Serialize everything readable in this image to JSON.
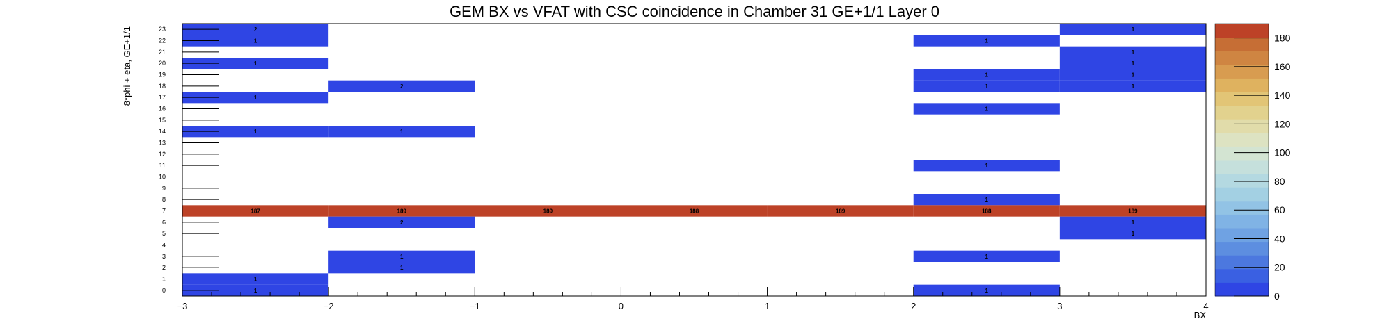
{
  "chart_data": {
    "type": "heatmap",
    "title": "GEM BX vs VFAT with CSC coincidence in Chamber 31 GE+1/1 Layer 0",
    "xlabel": "BX",
    "ylabel": "8*phi + eta, GE+1/1",
    "xlim": [
      -3,
      4
    ],
    "ylim": [
      -0.5,
      23.5
    ],
    "x_ticks": [
      "−3",
      "−2",
      "−1",
      "0",
      "1",
      "2",
      "3",
      "4"
    ],
    "y_ticks": [
      "0",
      "1",
      "2",
      "3",
      "4",
      "5",
      "6",
      "7",
      "8",
      "9",
      "10",
      "11",
      "12",
      "13",
      "14",
      "15",
      "16",
      "17",
      "18",
      "19",
      "20",
      "21",
      "22",
      "23"
    ],
    "x_bin_edges": [
      -3,
      -2,
      -1,
      0,
      1,
      2,
      3,
      4
    ],
    "zlim": [
      0,
      189
    ],
    "colorbar_ticks": [
      "0",
      "20",
      "40",
      "60",
      "80",
      "100",
      "120",
      "140",
      "160",
      "180"
    ],
    "cells": [
      {
        "bin": 0,
        "y": 23,
        "value": 2,
        "label": "2"
      },
      {
        "bin": 0,
        "y": 22,
        "value": 1,
        "label": "1"
      },
      {
        "bin": 0,
        "y": 20,
        "value": 1,
        "label": "1"
      },
      {
        "bin": 0,
        "y": 17,
        "value": 1,
        "label": "1"
      },
      {
        "bin": 0,
        "y": 14,
        "value": 1,
        "label": "1"
      },
      {
        "bin": 0,
        "y": 7,
        "value": 187,
        "label": "187"
      },
      {
        "bin": 0,
        "y": 1,
        "value": 1,
        "label": "1"
      },
      {
        "bin": 0,
        "y": 0,
        "value": 1,
        "label": "1"
      },
      {
        "bin": 1,
        "y": 18,
        "value": 2,
        "label": "2"
      },
      {
        "bin": 1,
        "y": 14,
        "value": 1,
        "label": "1"
      },
      {
        "bin": 1,
        "y": 7,
        "value": 189,
        "label": "189"
      },
      {
        "bin": 1,
        "y": 6,
        "value": 2,
        "label": "2"
      },
      {
        "bin": 1,
        "y": 3,
        "value": 1,
        "label": "1"
      },
      {
        "bin": 1,
        "y": 2,
        "value": 1,
        "label": "1"
      },
      {
        "bin": 2,
        "y": 7,
        "value": 189,
        "label": "189"
      },
      {
        "bin": 3,
        "y": 7,
        "value": 188,
        "label": "188"
      },
      {
        "bin": 4,
        "y": 7,
        "value": 189,
        "label": "189"
      },
      {
        "bin": 5,
        "y": 22,
        "value": 1,
        "label": "1"
      },
      {
        "bin": 5,
        "y": 19,
        "value": 1,
        "label": "1"
      },
      {
        "bin": 5,
        "y": 18,
        "value": 1,
        "label": "1"
      },
      {
        "bin": 5,
        "y": 16,
        "value": 1,
        "label": "1"
      },
      {
        "bin": 5,
        "y": 11,
        "value": 1,
        "label": "1"
      },
      {
        "bin": 5,
        "y": 8,
        "value": 1,
        "label": "1"
      },
      {
        "bin": 5,
        "y": 7,
        "value": 188,
        "label": "188"
      },
      {
        "bin": 5,
        "y": 3,
        "value": 1,
        "label": "1"
      },
      {
        "bin": 5,
        "y": 0,
        "value": 1,
        "label": "1"
      },
      {
        "bin": 6,
        "y": 23,
        "value": 1,
        "label": "1"
      },
      {
        "bin": 6,
        "y": 21,
        "value": 1,
        "label": "1"
      },
      {
        "bin": 6,
        "y": 20,
        "value": 1,
        "label": "1"
      },
      {
        "bin": 6,
        "y": 19,
        "value": 1,
        "label": "1"
      },
      {
        "bin": 6,
        "y": 18,
        "value": 1,
        "label": "1"
      },
      {
        "bin": 6,
        "y": 7,
        "value": 189,
        "label": "189"
      },
      {
        "bin": 6,
        "y": 6,
        "value": 1,
        "label": "1"
      },
      {
        "bin": 6,
        "y": 5,
        "value": 1,
        "label": "1"
      }
    ],
    "low_color": "#2f45e4",
    "high_color": "#bd4227",
    "palette": [
      "#2f45e4",
      "#3a60e2",
      "#4c78df",
      "#5d8ee0",
      "#6fa2e3",
      "#80b3e5",
      "#92c3e5",
      "#a3d0e3",
      "#b4d9e1",
      "#c5e0dc",
      "#d3e4d2",
      "#dde3c2",
      "#e1dcaa",
      "#e2d28e",
      "#e2c576",
      "#dfb25f",
      "#d89c50",
      "#cf8542",
      "#c66e35",
      "#bd4227"
    ]
  }
}
